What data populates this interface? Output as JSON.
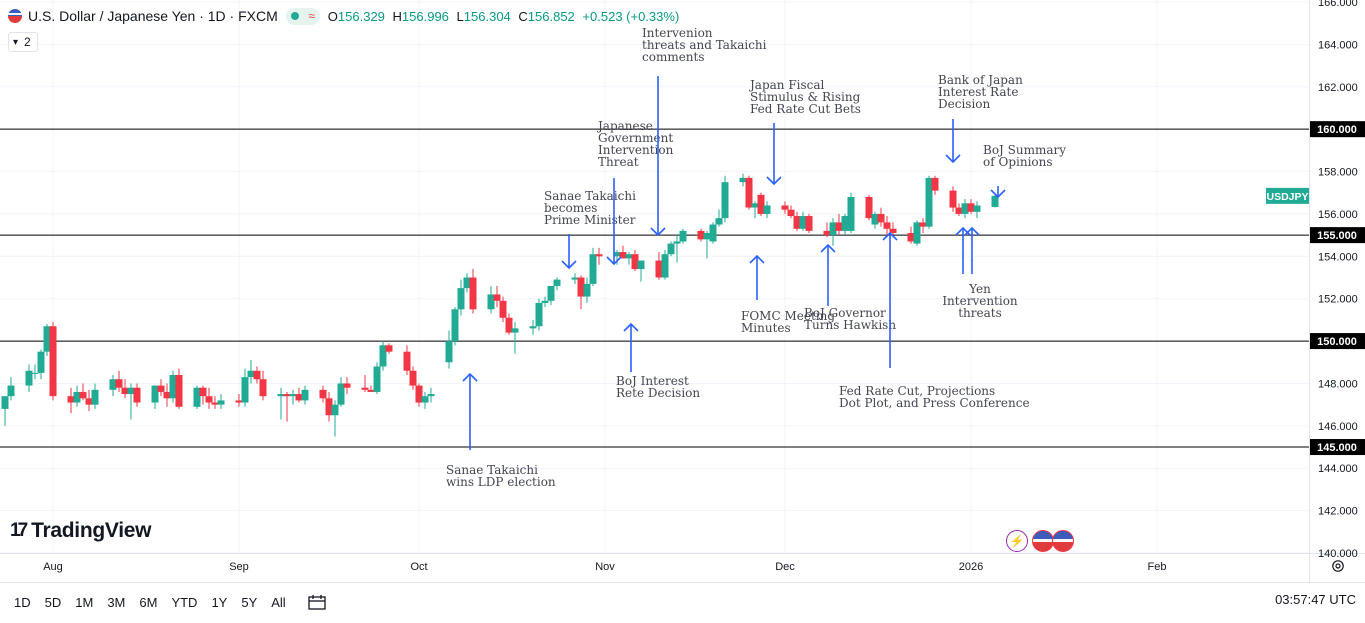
{
  "header": {
    "symbol": "U.S. Dollar / Japanese Yen · 1D · FXCM",
    "open_label": "O",
    "open": "156.329",
    "high_label": "H",
    "high": "156.996",
    "low_label": "L",
    "low": "156.304",
    "close_label": "C",
    "close": "156.852",
    "change": "+0.523 (+0.33%)",
    "indicator_count": "2"
  },
  "logo_text": "TradingView",
  "timeframes": [
    "1D",
    "5D",
    "1M",
    "3M",
    "6M",
    "YTD",
    "1Y",
    "5Y",
    "All"
  ],
  "clock": "03:57:47 UTC",
  "colors": {
    "up": "#22ab94",
    "down": "#f23645",
    "arrow": "#2962ff",
    "line": "#000000",
    "label_bg": "#22ab94"
  },
  "chart_data": {
    "type": "candlestick",
    "symbol_label": "USDJPY",
    "last_price": 156.852,
    "ylim": [
      140,
      166
    ],
    "y_ticks": [
      140,
      142,
      144,
      146,
      148,
      150,
      152,
      154,
      156,
      158,
      160,
      162,
      164,
      166
    ],
    "y_tick_labels": [
      "140.000",
      "142.000",
      "144.000",
      "146.000",
      "148.000",
      "150.000",
      "152.000",
      "154.000",
      "156.000",
      "158.000",
      "160.000",
      "162.000",
      "164.000",
      "166.000"
    ],
    "x_ticks": [
      {
        "label": "Aug",
        "date": "2025-08-01"
      },
      {
        "label": "Sep",
        "date": "2025-09-01"
      },
      {
        "label": "Oct",
        "date": "2025-10-01"
      },
      {
        "label": "Nov",
        "date": "2025-11-01"
      },
      {
        "label": "Dec",
        "date": "2025-12-01"
      },
      {
        "label": "2026",
        "date": "2026-01-01"
      },
      {
        "label": "Feb",
        "date": "2026-02-01"
      }
    ],
    "x_range": [
      "2025-07-24",
      "2026-02-19"
    ],
    "horizontal_levels": [
      {
        "value": 160,
        "label": "160.000"
      },
      {
        "value": 155,
        "label": "155.000"
      },
      {
        "value": 150,
        "label": "150.000"
      },
      {
        "value": 145,
        "label": "145.000"
      }
    ],
    "candles": [
      {
        "date": "2025-07-24",
        "o": 146.8,
        "h": 147.3,
        "l": 146.0,
        "c": 147.4
      },
      {
        "date": "2025-07-25",
        "o": 147.4,
        "h": 148.3,
        "l": 147.2,
        "c": 147.9
      },
      {
        "date": "2025-07-28",
        "o": 147.9,
        "h": 148.9,
        "l": 147.6,
        "c": 148.6
      },
      {
        "date": "2025-07-29",
        "o": 148.5,
        "h": 148.9,
        "l": 148.2,
        "c": 148.5
      },
      {
        "date": "2025-07-30",
        "o": 148.5,
        "h": 149.6,
        "l": 148.2,
        "c": 149.5
      },
      {
        "date": "2025-07-31",
        "o": 149.5,
        "h": 150.8,
        "l": 149.3,
        "c": 150.7
      },
      {
        "date": "2025-08-01",
        "o": 150.7,
        "h": 150.9,
        "l": 147.2,
        "c": 147.4
      },
      {
        "date": "2025-08-04",
        "o": 147.4,
        "h": 147.8,
        "l": 146.6,
        "c": 147.1
      },
      {
        "date": "2025-08-05",
        "o": 147.1,
        "h": 147.9,
        "l": 146.9,
        "c": 147.6
      },
      {
        "date": "2025-08-06",
        "o": 147.6,
        "h": 148.0,
        "l": 147.2,
        "c": 147.3
      },
      {
        "date": "2025-08-07",
        "o": 147.3,
        "h": 147.7,
        "l": 146.7,
        "c": 147.0
      },
      {
        "date": "2025-08-08",
        "o": 147.0,
        "h": 148.0,
        "l": 146.8,
        "c": 147.7
      },
      {
        "date": "2025-08-11",
        "o": 147.7,
        "h": 148.4,
        "l": 147.4,
        "c": 148.2
      },
      {
        "date": "2025-08-12",
        "o": 148.2,
        "h": 148.6,
        "l": 147.6,
        "c": 147.8
      },
      {
        "date": "2025-08-13",
        "o": 147.8,
        "h": 148.2,
        "l": 147.3,
        "c": 147.5
      },
      {
        "date": "2025-08-14",
        "o": 147.5,
        "h": 148.0,
        "l": 146.3,
        "c": 147.8
      },
      {
        "date": "2025-08-15",
        "o": 147.8,
        "h": 148.0,
        "l": 146.9,
        "c": 147.1
      },
      {
        "date": "2025-08-18",
        "o": 147.1,
        "h": 147.9,
        "l": 146.8,
        "c": 147.9
      },
      {
        "date": "2025-08-19",
        "o": 147.9,
        "h": 148.2,
        "l": 147.4,
        "c": 147.6
      },
      {
        "date": "2025-08-20",
        "o": 147.6,
        "h": 148.0,
        "l": 146.9,
        "c": 147.3
      },
      {
        "date": "2025-08-21",
        "o": 147.3,
        "h": 148.6,
        "l": 147.1,
        "c": 148.4
      },
      {
        "date": "2025-08-22",
        "o": 148.4,
        "h": 148.7,
        "l": 146.8,
        "c": 146.9
      },
      {
        "date": "2025-08-25",
        "o": 146.9,
        "h": 147.9,
        "l": 146.8,
        "c": 147.8
      },
      {
        "date": "2025-08-26",
        "o": 147.8,
        "h": 147.9,
        "l": 147.0,
        "c": 147.4
      },
      {
        "date": "2025-08-27",
        "o": 147.4,
        "h": 147.8,
        "l": 146.8,
        "c": 147.1
      },
      {
        "date": "2025-08-28",
        "o": 147.1,
        "h": 147.4,
        "l": 146.8,
        "c": 147.0
      },
      {
        "date": "2025-08-29",
        "o": 147.0,
        "h": 147.5,
        "l": 146.8,
        "c": 147.2
      },
      {
        "date": "2025-09-01",
        "o": 147.2,
        "h": 147.5,
        "l": 146.9,
        "c": 147.1
      },
      {
        "date": "2025-09-02",
        "o": 147.1,
        "h": 148.7,
        "l": 146.9,
        "c": 148.3
      },
      {
        "date": "2025-09-03",
        "o": 148.3,
        "h": 149.1,
        "l": 148.0,
        "c": 148.6
      },
      {
        "date": "2025-09-04",
        "o": 148.6,
        "h": 148.8,
        "l": 148.0,
        "c": 148.2
      },
      {
        "date": "2025-09-05",
        "o": 148.2,
        "h": 148.6,
        "l": 147.2,
        "c": 147.4
      },
      {
        "date": "2025-09-08",
        "o": 147.4,
        "h": 147.8,
        "l": 146.3,
        "c": 147.5
      },
      {
        "date": "2025-09-09",
        "o": 147.5,
        "h": 147.6,
        "l": 146.2,
        "c": 147.4
      },
      {
        "date": "2025-09-10",
        "o": 147.4,
        "h": 147.7,
        "l": 147.0,
        "c": 147.5
      },
      {
        "date": "2025-09-11",
        "o": 147.5,
        "h": 147.8,
        "l": 147.1,
        "c": 147.2
      },
      {
        "date": "2025-09-12",
        "o": 147.2,
        "h": 147.9,
        "l": 147.0,
        "c": 147.7
      },
      {
        "date": "2025-09-15",
        "o": 147.7,
        "h": 147.9,
        "l": 147.1,
        "c": 147.3
      },
      {
        "date": "2025-09-16",
        "o": 147.3,
        "h": 147.6,
        "l": 146.2,
        "c": 146.5
      },
      {
        "date": "2025-09-17",
        "o": 146.5,
        "h": 147.2,
        "l": 145.5,
        "c": 147.0
      },
      {
        "date": "2025-09-18",
        "o": 147.0,
        "h": 148.3,
        "l": 146.9,
        "c": 148.0
      },
      {
        "date": "2025-09-19",
        "o": 148.0,
        "h": 148.3,
        "l": 147.5,
        "c": 147.8
      },
      {
        "date": "2025-09-22",
        "o": 147.8,
        "h": 148.4,
        "l": 147.6,
        "c": 147.7
      },
      {
        "date": "2025-09-23",
        "o": 147.7,
        "h": 147.9,
        "l": 147.6,
        "c": 147.6
      },
      {
        "date": "2025-09-24",
        "o": 147.6,
        "h": 149.0,
        "l": 147.5,
        "c": 148.8
      },
      {
        "date": "2025-09-25",
        "o": 148.8,
        "h": 150.0,
        "l": 148.6,
        "c": 149.8
      },
      {
        "date": "2025-09-26",
        "o": 149.8,
        "h": 149.9,
        "l": 149.4,
        "c": 149.5
      },
      {
        "date": "2025-09-29",
        "o": 149.5,
        "h": 149.8,
        "l": 148.4,
        "c": 148.6
      },
      {
        "date": "2025-09-30",
        "o": 148.6,
        "h": 148.8,
        "l": 147.7,
        "c": 147.9
      },
      {
        "date": "2025-10-01",
        "o": 147.9,
        "h": 148.0,
        "l": 146.9,
        "c": 147.1
      },
      {
        "date": "2025-10-02",
        "o": 147.1,
        "h": 147.6,
        "l": 146.8,
        "c": 147.4
      },
      {
        "date": "2025-10-03",
        "o": 147.4,
        "h": 147.8,
        "l": 147.1,
        "c": 147.5
      },
      {
        "date": "2025-10-06",
        "o": 149.0,
        "h": 150.5,
        "l": 148.7,
        "c": 150.0
      },
      {
        "date": "2025-10-07",
        "o": 150.0,
        "h": 151.6,
        "l": 149.8,
        "c": 151.5
      },
      {
        "date": "2025-10-08",
        "o": 151.5,
        "h": 152.9,
        "l": 151.2,
        "c": 152.5
      },
      {
        "date": "2025-10-09",
        "o": 152.5,
        "h": 153.2,
        "l": 152.3,
        "c": 153.0
      },
      {
        "date": "2025-10-10",
        "o": 153.0,
        "h": 153.4,
        "l": 151.3,
        "c": 151.5
      },
      {
        "date": "2025-10-13",
        "o": 151.5,
        "h": 152.6,
        "l": 151.3,
        "c": 152.2
      },
      {
        "date": "2025-10-14",
        "o": 152.2,
        "h": 152.6,
        "l": 151.6,
        "c": 151.9
      },
      {
        "date": "2025-10-15",
        "o": 151.9,
        "h": 152.1,
        "l": 150.9,
        "c": 151.1
      },
      {
        "date": "2025-10-16",
        "o": 151.1,
        "h": 151.3,
        "l": 150.3,
        "c": 150.4
      },
      {
        "date": "2025-10-17",
        "o": 150.4,
        "h": 150.9,
        "l": 149.4,
        "c": 150.6
      },
      {
        "date": "2025-10-20",
        "o": 150.6,
        "h": 151.0,
        "l": 150.3,
        "c": 150.7
      },
      {
        "date": "2025-10-21",
        "o": 150.7,
        "h": 152.0,
        "l": 150.5,
        "c": 151.8
      },
      {
        "date": "2025-10-22",
        "o": 151.8,
        "h": 152.1,
        "l": 151.6,
        "c": 151.9
      },
      {
        "date": "2025-10-23",
        "o": 151.9,
        "h": 152.6,
        "l": 151.7,
        "c": 152.6
      },
      {
        "date": "2025-10-24",
        "o": 152.6,
        "h": 153.0,
        "l": 152.4,
        "c": 152.9
      },
      {
        "date": "2025-10-27",
        "o": 152.9,
        "h": 153.2,
        "l": 152.7,
        "c": 153.0
      },
      {
        "date": "2025-10-28",
        "o": 153.0,
        "h": 153.1,
        "l": 151.5,
        "c": 152.1
      },
      {
        "date": "2025-10-29",
        "o": 152.1,
        "h": 153.0,
        "l": 151.8,
        "c": 152.7
      },
      {
        "date": "2025-10-30",
        "o": 152.7,
        "h": 154.4,
        "l": 152.6,
        "c": 154.1
      },
      {
        "date": "2025-10-31",
        "o": 154.1,
        "h": 154.4,
        "l": 153.6,
        "c": 154.0
      },
      {
        "date": "2025-11-03",
        "o": 154.0,
        "h": 154.3,
        "l": 153.6,
        "c": 154.2
      },
      {
        "date": "2025-11-04",
        "o": 154.2,
        "h": 154.5,
        "l": 153.9,
        "c": 153.9
      },
      {
        "date": "2025-11-05",
        "o": 153.9,
        "h": 154.2,
        "l": 153.6,
        "c": 154.1
      },
      {
        "date": "2025-11-06",
        "o": 154.1,
        "h": 154.3,
        "l": 153.3,
        "c": 153.4
      },
      {
        "date": "2025-11-07",
        "o": 153.4,
        "h": 153.7,
        "l": 152.8,
        "c": 153.8
      },
      {
        "date": "2025-11-10",
        "o": 153.8,
        "h": 154.2,
        "l": 152.9,
        "c": 153.0
      },
      {
        "date": "2025-11-11",
        "o": 153.0,
        "h": 154.3,
        "l": 152.9,
        "c": 154.1
      },
      {
        "date": "2025-11-12",
        "o": 154.1,
        "h": 154.7,
        "l": 154.0,
        "c": 154.6
      },
      {
        "date": "2025-11-13",
        "o": 154.6,
        "h": 155.0,
        "l": 153.7,
        "c": 154.7
      },
      {
        "date": "2025-11-14",
        "o": 154.7,
        "h": 155.3,
        "l": 154.6,
        "c": 155.2
      },
      {
        "date": "2025-11-17",
        "o": 155.2,
        "h": 155.3,
        "l": 154.7,
        "c": 154.8
      },
      {
        "date": "2025-11-18",
        "o": 154.8,
        "h": 155.2,
        "l": 153.9,
        "c": 155.1
      },
      {
        "date": "2025-11-19",
        "o": 154.7,
        "h": 155.6,
        "l": 154.6,
        "c": 155.5
      },
      {
        "date": "2025-11-20",
        "o": 155.5,
        "h": 156.2,
        "l": 155.4,
        "c": 155.8
      },
      {
        "date": "2025-11-21",
        "o": 155.8,
        "h": 157.8,
        "l": 155.6,
        "c": 157.5
      },
      {
        "date": "2025-11-24",
        "o": 157.5,
        "h": 157.9,
        "l": 157.3,
        "c": 157.7
      },
      {
        "date": "2025-11-25",
        "o": 157.7,
        "h": 157.8,
        "l": 156.2,
        "c": 156.3
      },
      {
        "date": "2025-11-26",
        "o": 156.3,
        "h": 156.6,
        "l": 155.8,
        "c": 156.5
      },
      {
        "date": "2025-11-27",
        "o": 156.9,
        "h": 157.0,
        "l": 155.9,
        "c": 156.0
      },
      {
        "date": "2025-11-28",
        "o": 156.0,
        "h": 156.6,
        "l": 155.8,
        "c": 156.4
      },
      {
        "date": "2025-12-01",
        "o": 156.4,
        "h": 156.6,
        "l": 156.0,
        "c": 156.2
      },
      {
        "date": "2025-12-02",
        "o": 156.2,
        "h": 156.4,
        "l": 155.8,
        "c": 155.9
      },
      {
        "date": "2025-12-03",
        "o": 155.9,
        "h": 156.1,
        "l": 155.2,
        "c": 155.3
      },
      {
        "date": "2025-12-04",
        "o": 155.3,
        "h": 156.1,
        "l": 155.2,
        "c": 155.9
      },
      {
        "date": "2025-12-05",
        "o": 155.9,
        "h": 156.0,
        "l": 155.1,
        "c": 155.2
      },
      {
        "date": "2025-12-08",
        "o": 155.2,
        "h": 155.6,
        "l": 154.9,
        "c": 155.0
      },
      {
        "date": "2025-12-09",
        "o": 155.0,
        "h": 155.8,
        "l": 154.5,
        "c": 155.6
      },
      {
        "date": "2025-12-10",
        "o": 155.6,
        "h": 156.0,
        "l": 155.0,
        "c": 155.2
      },
      {
        "date": "2025-12-11",
        "o": 155.2,
        "h": 156.0,
        "l": 155.0,
        "c": 155.9
      },
      {
        "date": "2025-12-12",
        "o": 155.2,
        "h": 157.0,
        "l": 155.1,
        "c": 156.8
      },
      {
        "date": "2025-12-15",
        "o": 156.8,
        "h": 156.9,
        "l": 155.7,
        "c": 155.8
      },
      {
        "date": "2025-12-16",
        "o": 155.5,
        "h": 156.1,
        "l": 155.3,
        "c": 156.0
      },
      {
        "date": "2025-12-17",
        "o": 156.0,
        "h": 156.3,
        "l": 155.4,
        "c": 155.6
      },
      {
        "date": "2025-12-18",
        "o": 155.6,
        "h": 155.9,
        "l": 154.9,
        "c": 155.3
      },
      {
        "date": "2025-12-19",
        "o": 155.3,
        "h": 155.6,
        "l": 154.9,
        "c": 155.1
      },
      {
        "date": "2025-12-22",
        "o": 155.1,
        "h": 155.4,
        "l": 154.6,
        "c": 154.7
      },
      {
        "date": "2025-12-23",
        "o": 154.6,
        "h": 155.7,
        "l": 154.5,
        "c": 155.6
      },
      {
        "date": "2025-12-24",
        "o": 155.6,
        "h": 155.8,
        "l": 155.1,
        "c": 155.4
      },
      {
        "date": "2025-12-25",
        "o": 155.4,
        "h": 157.8,
        "l": 155.3,
        "c": 157.7
      },
      {
        "date": "2025-12-26",
        "o": 157.7,
        "h": 157.8,
        "l": 156.9,
        "c": 157.1
      },
      {
        "date": "2025-12-29",
        "o": 157.1,
        "h": 157.3,
        "l": 156.1,
        "c": 156.3
      },
      {
        "date": "2025-12-30",
        "o": 156.3,
        "h": 156.5,
        "l": 155.9,
        "c": 156.0
      },
      {
        "date": "2025-12-31",
        "o": 156.0,
        "h": 156.7,
        "l": 155.8,
        "c": 156.5
      },
      {
        "date": "2026-01-01",
        "o": 156.5,
        "h": 156.7,
        "l": 156.0,
        "c": 156.1
      },
      {
        "date": "2026-01-02",
        "o": 156.1,
        "h": 156.6,
        "l": 155.8,
        "c": 156.4
      },
      {
        "date": "2026-01-05",
        "o": 156.329,
        "h": 156.996,
        "l": 156.304,
        "c": 156.852
      }
    ],
    "annotations": [
      {
        "text": "Sanae Takaichi\nwins LDP election",
        "date": "2025-10-06",
        "arrow": "up"
      },
      {
        "text": "Sanae Takaichi\nbecomes\nPrime Minister",
        "date": "2025-10-21",
        "arrow": "down"
      },
      {
        "text": "Japanese\nGovernment\nIntervention\nThreat",
        "date": "2025-10-28",
        "arrow": "down"
      },
      {
        "text": "BoJ Interest\nRete Decision",
        "date": "2025-10-30",
        "arrow": "up"
      },
      {
        "text": "Intervenion\nthreats and Takaichi\ncomments",
        "date": "2025-11-03",
        "arrow": "down"
      },
      {
        "text": "FOMC Meeting\nMinutes",
        "date": "2025-11-19",
        "arrow": "up"
      },
      {
        "text": "Japan Fiscal\nStimulus & Rising\nFed Rate Cut Bets",
        "date": "2025-11-24",
        "arrow": "down"
      },
      {
        "text": "BoJ Governor\nTurns Hawkish",
        "date": "2025-12-01",
        "arrow": "up"
      },
      {
        "text": "Fed Rate Cut, Projections\nDot Plot, and Press Conference",
        "date": "2025-12-10",
        "arrow": "up"
      },
      {
        "text": "Bank of Japan\nInterest Rate\nDecision",
        "date": "2025-12-19",
        "arrow": "down"
      },
      {
        "text": "BoJ Summary\nof Opinions",
        "date": "2025-12-26",
        "arrow": "down"
      },
      {
        "text": "Yen\nIntervention\nthreats",
        "date": "2025-12-22",
        "arrow": "up"
      }
    ]
  }
}
